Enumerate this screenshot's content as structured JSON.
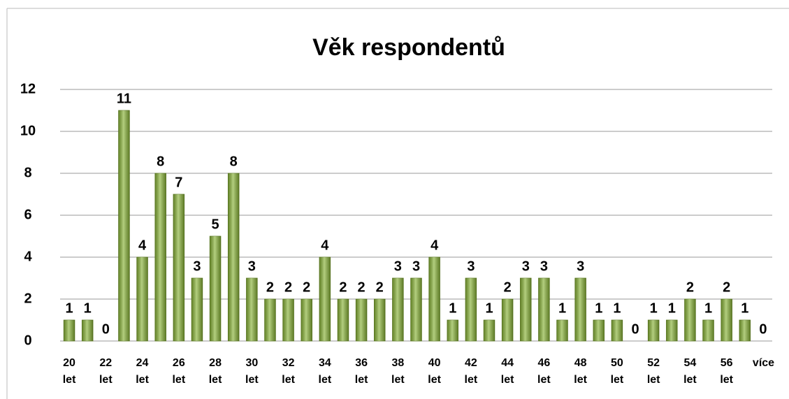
{
  "chart_data": {
    "type": "bar",
    "title": "Věk respondentů",
    "categories": [
      "20 let",
      null,
      "22 let",
      null,
      "24 let",
      null,
      "26 let",
      null,
      "28 let",
      null,
      "30 let",
      null,
      "32 let",
      null,
      "34 let",
      null,
      "36 let",
      null,
      "38 let",
      null,
      "40 let",
      null,
      "42 let",
      null,
      "44 let",
      null,
      "46 let",
      null,
      "48 let",
      null,
      "50 let",
      null,
      "52 let",
      null,
      "54 let",
      null,
      "56 let",
      null,
      "více"
    ],
    "values": [
      1,
      1,
      0,
      11,
      4,
      8,
      7,
      3,
      5,
      8,
      3,
      2,
      2,
      2,
      4,
      2,
      2,
      2,
      3,
      3,
      4,
      1,
      3,
      1,
      2,
      3,
      3,
      1,
      3,
      1,
      1,
      0,
      1,
      1,
      2,
      1,
      2,
      1,
      0
    ],
    "color": "#8ab43a",
    "ylim": [
      0,
      12
    ],
    "yticks": [
      0,
      2,
      4,
      6,
      8,
      10,
      12
    ],
    "grid": true
  }
}
